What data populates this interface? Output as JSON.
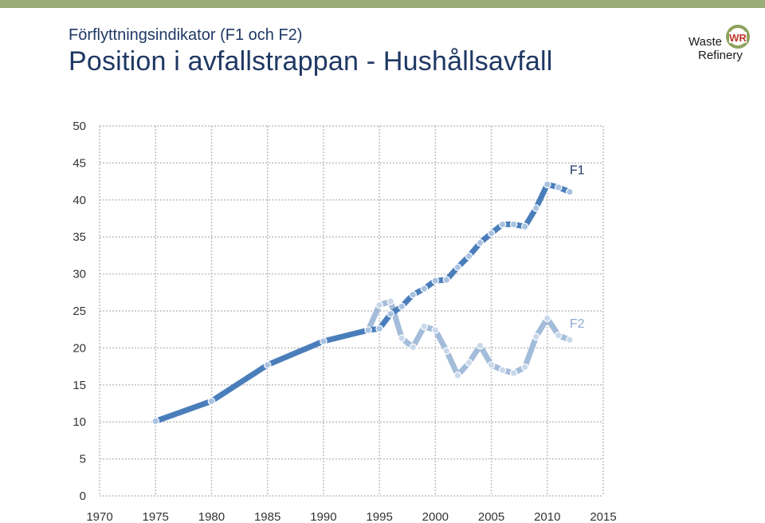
{
  "header": {
    "subtitle": "Förflyttningsindikator (F1 och F2)",
    "title": "Position i avfallstrappan - Hushållsavfall"
  },
  "logo": {
    "line1": "Waste",
    "line2": "Refinery",
    "mark": "WR"
  },
  "colors": {
    "top_bar": "#9aac78",
    "title_text": "#1f3864",
    "f1": "#4a7ebb",
    "f2": "#a3bcd9",
    "grid": "#bfbfbf"
  },
  "chart_data": {
    "type": "line",
    "xlim": [
      1970,
      2015
    ],
    "ylim": [
      0,
      50
    ],
    "x_ticks": [
      1970,
      1975,
      1980,
      1985,
      1990,
      1995,
      2000,
      2005,
      2010,
      2015
    ],
    "y_ticks": [
      0,
      5,
      10,
      15,
      20,
      25,
      30,
      35,
      40,
      45,
      50
    ],
    "grid": true,
    "series": [
      {
        "name": "F1",
        "color": "#4a7ebb",
        "x": [
          1975,
          1980,
          1985,
          1990,
          1994,
          1995,
          1996,
          1997,
          1998,
          1999,
          2000,
          2001,
          2002,
          2003,
          2004,
          2005,
          2006,
          2007,
          2008,
          2009,
          2010,
          2011,
          2012
        ],
        "y": [
          10.1,
          12.8,
          17.7,
          20.9,
          22.4,
          22.6,
          24.6,
          25.6,
          27.2,
          28.0,
          29.1,
          29.2,
          30.9,
          32.4,
          34.2,
          35.5,
          36.7,
          36.7,
          36.4,
          38.9,
          42.1,
          41.7,
          41.1
        ]
      },
      {
        "name": "F2",
        "color": "#a3bcd9",
        "x": [
          1975,
          1980,
          1985,
          1990,
          1994,
          1995,
          1996,
          1997,
          1998,
          1999,
          2000,
          2001,
          2002,
          2003,
          2004,
          2005,
          2006,
          2007,
          2008,
          2009,
          2010,
          2011,
          2012
        ],
        "y": [
          10.1,
          12.8,
          17.7,
          20.9,
          22.4,
          25.8,
          26.3,
          21.3,
          20.1,
          22.9,
          22.4,
          19.6,
          16.3,
          18.0,
          20.3,
          17.7,
          17.0,
          16.6,
          17.4,
          21.5,
          24.0,
          21.7,
          21.1
        ]
      }
    ]
  }
}
